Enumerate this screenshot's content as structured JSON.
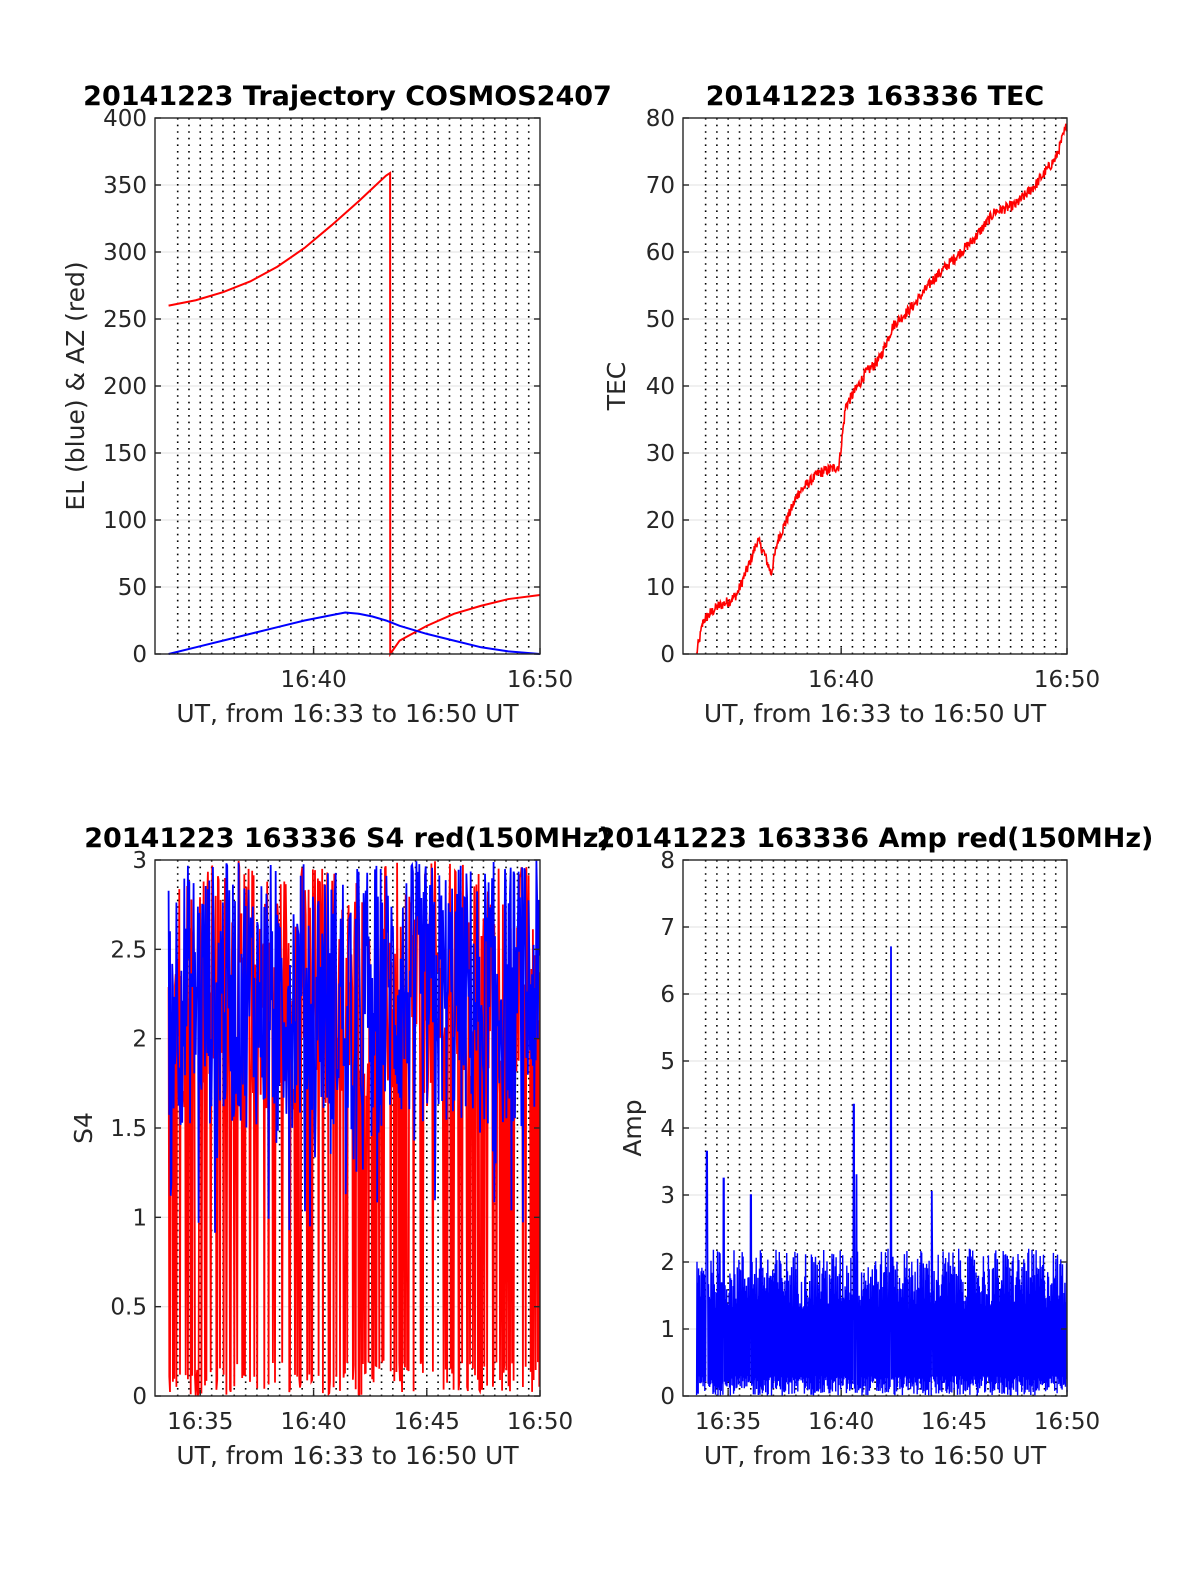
{
  "chart_data": [
    {
      "type": "line",
      "title": "20141223 Trajectory COSMOS2407",
      "xlabel": "UT, from 16:33 to 16:50 UT",
      "ylabel": "EL (blue) & AZ (red)",
      "xlim": [
        16.55,
        16.8333
      ],
      "ylim": [
        0,
        400
      ],
      "yticks": [
        0,
        50,
        100,
        150,
        200,
        250,
        300,
        350,
        400
      ],
      "xticks": [
        {
          "v": 16.6667,
          "label": "16:40"
        },
        {
          "v": 16.8333,
          "label": "16:50"
        }
      ],
      "grid": true,
      "series": [
        {
          "color": "#ff0000",
          "x": [
            16.56,
            16.58,
            16.6,
            16.62,
            16.64,
            16.66,
            16.68,
            16.7,
            16.72,
            16.723,
            16.7231,
            16.73,
            16.75,
            16.77,
            16.79,
            16.81,
            16.8333
          ],
          "y": [
            260,
            264,
            270,
            278,
            289,
            303,
            320,
            338,
            357,
            359,
            0,
            10,
            21,
            30,
            36,
            41,
            44
          ]
        },
        {
          "color": "#0000ff",
          "x": [
            16.56,
            16.58,
            16.6,
            16.62,
            16.64,
            16.66,
            16.68,
            16.69,
            16.7,
            16.71,
            16.72,
            16.73,
            16.75,
            16.77,
            16.79,
            16.81,
            16.8333
          ],
          "y": [
            0,
            5,
            10,
            15,
            20,
            25,
            29,
            31,
            30,
            28,
            25,
            21,
            15,
            10,
            5,
            2,
            0
          ]
        }
      ]
    },
    {
      "type": "line",
      "title": "20141223 163336 TEC",
      "xlabel": "UT, from 16:33 to 16:50 UT",
      "ylabel": "TEC",
      "xlim": [
        16.55,
        16.8333
      ],
      "ylim": [
        0,
        80
      ],
      "yticks": [
        0,
        10,
        20,
        30,
        40,
        50,
        60,
        70,
        80
      ],
      "xticks": [
        {
          "v": 16.6667,
          "label": "16:40"
        },
        {
          "v": 16.8333,
          "label": "16:50"
        }
      ],
      "grid": true,
      "series": [
        {
          "color": "#ff0000",
          "x": [
            16.56,
            16.565,
            16.575,
            16.585,
            16.59,
            16.6,
            16.605,
            16.61,
            16.615,
            16.62,
            16.635,
            16.65,
            16.665,
            16.67,
            16.685,
            16.695,
            16.705,
            16.72,
            16.735,
            16.75,
            16.765,
            16.78,
            16.795,
            16.81,
            16.825,
            16.8333
          ],
          "y": [
            0,
            5,
            7,
            8,
            9,
            14,
            17,
            15,
            12,
            17,
            24,
            27,
            28,
            37,
            42,
            44,
            49,
            52,
            56,
            59,
            62,
            66,
            67,
            70,
            74,
            79
          ]
        }
      ]
    },
    {
      "type": "line",
      "title": "20141223 163336 S4 red(150MHz)",
      "xlabel": "UT, from 16:33 to 16:50 UT",
      "ylabel": "S4",
      "xlim": [
        16.55,
        16.8333
      ],
      "ylim": [
        0,
        3
      ],
      "yticks": [
        0,
        0.5,
        1,
        1.5,
        2,
        2.5,
        3
      ],
      "xticks": [
        {
          "v": 16.5833,
          "label": "16:35"
        },
        {
          "v": 16.6667,
          "label": "16:40"
        },
        {
          "v": 16.75,
          "label": "16:45"
        },
        {
          "v": 16.8333,
          "label": "16:50"
        }
      ],
      "grid": true,
      "series": [
        {
          "color": "#ff0000",
          "x_range": [
            16.56,
            16.8333
          ],
          "values_range": [
            0,
            3
          ],
          "note": ""
        },
        {
          "color": "#0000ff",
          "x_range": [
            16.56,
            16.8333
          ],
          "values_range": [
            0.9,
            3
          ]
        }
      ]
    },
    {
      "type": "line",
      "title": "20141223 163336 Amp red(150MHz)",
      "xlabel": "UT, from 16:33 to 16:50 UT",
      "ylabel": "Amp",
      "xlim": [
        16.55,
        16.8333
      ],
      "ylim": [
        0,
        8
      ],
      "yticks": [
        0,
        1,
        2,
        3,
        4,
        5,
        6,
        7,
        8
      ],
      "xticks": [
        {
          "v": 16.5833,
          "label": "16:35"
        },
        {
          "v": 16.6667,
          "label": "16:40"
        },
        {
          "v": 16.75,
          "label": "16:45"
        },
        {
          "v": 16.8333,
          "label": "16:50"
        }
      ],
      "grid": true,
      "series": [
        {
          "color": "#0000ff",
          "peaks": [
            {
              "x": 16.5675,
              "y": 3.65
            },
            {
              "x": 16.58,
              "y": 3.25
            },
            {
              "x": 16.6,
              "y": 3.0
            },
            {
              "x": 16.676,
              "y": 4.35
            },
            {
              "x": 16.678,
              "y": 3.3
            },
            {
              "x": 16.7035,
              "y": 6.7
            },
            {
              "x": 16.7335,
              "y": 3.05
            }
          ]
        }
      ]
    }
  ]
}
